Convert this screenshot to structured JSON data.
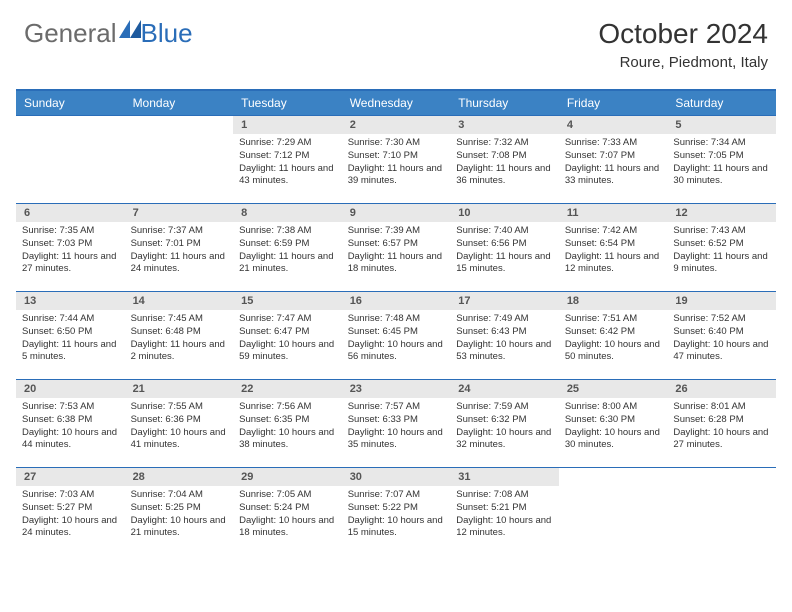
{
  "logo": {
    "text1": "General",
    "text2": "Blue"
  },
  "header": {
    "month_title": "October 2024",
    "location": "Roure, Piedmont, Italy"
  },
  "colors": {
    "header_bg": "#3b82c4",
    "border": "#2a6db8",
    "daynum_bg": "#e8e8e8",
    "text": "#333333"
  },
  "day_headers": [
    "Sunday",
    "Monday",
    "Tuesday",
    "Wednesday",
    "Thursday",
    "Friday",
    "Saturday"
  ],
  "weeks": [
    [
      {
        "num": "",
        "sunrise": "",
        "sunset": "",
        "daylight": ""
      },
      {
        "num": "",
        "sunrise": "",
        "sunset": "",
        "daylight": ""
      },
      {
        "num": "1",
        "sunrise": "Sunrise: 7:29 AM",
        "sunset": "Sunset: 7:12 PM",
        "daylight": "Daylight: 11 hours and 43 minutes."
      },
      {
        "num": "2",
        "sunrise": "Sunrise: 7:30 AM",
        "sunset": "Sunset: 7:10 PM",
        "daylight": "Daylight: 11 hours and 39 minutes."
      },
      {
        "num": "3",
        "sunrise": "Sunrise: 7:32 AM",
        "sunset": "Sunset: 7:08 PM",
        "daylight": "Daylight: 11 hours and 36 minutes."
      },
      {
        "num": "4",
        "sunrise": "Sunrise: 7:33 AM",
        "sunset": "Sunset: 7:07 PM",
        "daylight": "Daylight: 11 hours and 33 minutes."
      },
      {
        "num": "5",
        "sunrise": "Sunrise: 7:34 AM",
        "sunset": "Sunset: 7:05 PM",
        "daylight": "Daylight: 11 hours and 30 minutes."
      }
    ],
    [
      {
        "num": "6",
        "sunrise": "Sunrise: 7:35 AM",
        "sunset": "Sunset: 7:03 PM",
        "daylight": "Daylight: 11 hours and 27 minutes."
      },
      {
        "num": "7",
        "sunrise": "Sunrise: 7:37 AM",
        "sunset": "Sunset: 7:01 PM",
        "daylight": "Daylight: 11 hours and 24 minutes."
      },
      {
        "num": "8",
        "sunrise": "Sunrise: 7:38 AM",
        "sunset": "Sunset: 6:59 PM",
        "daylight": "Daylight: 11 hours and 21 minutes."
      },
      {
        "num": "9",
        "sunrise": "Sunrise: 7:39 AM",
        "sunset": "Sunset: 6:57 PM",
        "daylight": "Daylight: 11 hours and 18 minutes."
      },
      {
        "num": "10",
        "sunrise": "Sunrise: 7:40 AM",
        "sunset": "Sunset: 6:56 PM",
        "daylight": "Daylight: 11 hours and 15 minutes."
      },
      {
        "num": "11",
        "sunrise": "Sunrise: 7:42 AM",
        "sunset": "Sunset: 6:54 PM",
        "daylight": "Daylight: 11 hours and 12 minutes."
      },
      {
        "num": "12",
        "sunrise": "Sunrise: 7:43 AM",
        "sunset": "Sunset: 6:52 PM",
        "daylight": "Daylight: 11 hours and 9 minutes."
      }
    ],
    [
      {
        "num": "13",
        "sunrise": "Sunrise: 7:44 AM",
        "sunset": "Sunset: 6:50 PM",
        "daylight": "Daylight: 11 hours and 5 minutes."
      },
      {
        "num": "14",
        "sunrise": "Sunrise: 7:45 AM",
        "sunset": "Sunset: 6:48 PM",
        "daylight": "Daylight: 11 hours and 2 minutes."
      },
      {
        "num": "15",
        "sunrise": "Sunrise: 7:47 AM",
        "sunset": "Sunset: 6:47 PM",
        "daylight": "Daylight: 10 hours and 59 minutes."
      },
      {
        "num": "16",
        "sunrise": "Sunrise: 7:48 AM",
        "sunset": "Sunset: 6:45 PM",
        "daylight": "Daylight: 10 hours and 56 minutes."
      },
      {
        "num": "17",
        "sunrise": "Sunrise: 7:49 AM",
        "sunset": "Sunset: 6:43 PM",
        "daylight": "Daylight: 10 hours and 53 minutes."
      },
      {
        "num": "18",
        "sunrise": "Sunrise: 7:51 AM",
        "sunset": "Sunset: 6:42 PM",
        "daylight": "Daylight: 10 hours and 50 minutes."
      },
      {
        "num": "19",
        "sunrise": "Sunrise: 7:52 AM",
        "sunset": "Sunset: 6:40 PM",
        "daylight": "Daylight: 10 hours and 47 minutes."
      }
    ],
    [
      {
        "num": "20",
        "sunrise": "Sunrise: 7:53 AM",
        "sunset": "Sunset: 6:38 PM",
        "daylight": "Daylight: 10 hours and 44 minutes."
      },
      {
        "num": "21",
        "sunrise": "Sunrise: 7:55 AM",
        "sunset": "Sunset: 6:36 PM",
        "daylight": "Daylight: 10 hours and 41 minutes."
      },
      {
        "num": "22",
        "sunrise": "Sunrise: 7:56 AM",
        "sunset": "Sunset: 6:35 PM",
        "daylight": "Daylight: 10 hours and 38 minutes."
      },
      {
        "num": "23",
        "sunrise": "Sunrise: 7:57 AM",
        "sunset": "Sunset: 6:33 PM",
        "daylight": "Daylight: 10 hours and 35 minutes."
      },
      {
        "num": "24",
        "sunrise": "Sunrise: 7:59 AM",
        "sunset": "Sunset: 6:32 PM",
        "daylight": "Daylight: 10 hours and 32 minutes."
      },
      {
        "num": "25",
        "sunrise": "Sunrise: 8:00 AM",
        "sunset": "Sunset: 6:30 PM",
        "daylight": "Daylight: 10 hours and 30 minutes."
      },
      {
        "num": "26",
        "sunrise": "Sunrise: 8:01 AM",
        "sunset": "Sunset: 6:28 PM",
        "daylight": "Daylight: 10 hours and 27 minutes."
      }
    ],
    [
      {
        "num": "27",
        "sunrise": "Sunrise: 7:03 AM",
        "sunset": "Sunset: 5:27 PM",
        "daylight": "Daylight: 10 hours and 24 minutes."
      },
      {
        "num": "28",
        "sunrise": "Sunrise: 7:04 AM",
        "sunset": "Sunset: 5:25 PM",
        "daylight": "Daylight: 10 hours and 21 minutes."
      },
      {
        "num": "29",
        "sunrise": "Sunrise: 7:05 AM",
        "sunset": "Sunset: 5:24 PM",
        "daylight": "Daylight: 10 hours and 18 minutes."
      },
      {
        "num": "30",
        "sunrise": "Sunrise: 7:07 AM",
        "sunset": "Sunset: 5:22 PM",
        "daylight": "Daylight: 10 hours and 15 minutes."
      },
      {
        "num": "31",
        "sunrise": "Sunrise: 7:08 AM",
        "sunset": "Sunset: 5:21 PM",
        "daylight": "Daylight: 10 hours and 12 minutes."
      },
      {
        "num": "",
        "sunrise": "",
        "sunset": "",
        "daylight": ""
      },
      {
        "num": "",
        "sunrise": "",
        "sunset": "",
        "daylight": ""
      }
    ]
  ]
}
